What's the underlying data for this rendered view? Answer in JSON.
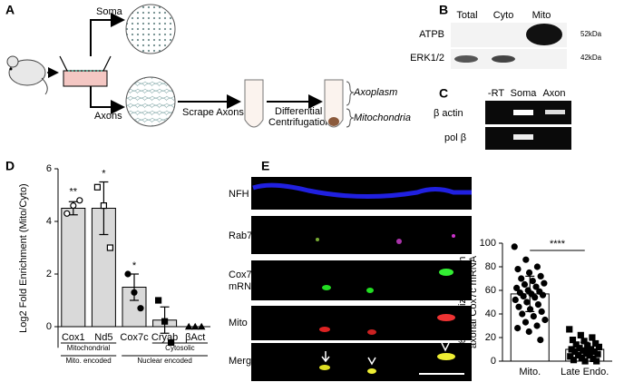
{
  "panels": {
    "A": {
      "label": "A",
      "soma": "Soma",
      "axons": "Axons",
      "scrape": "Scrape Axons",
      "centrifugation": [
        "Differential",
        "Centrifugation"
      ],
      "axoplasm": "Axoplasm",
      "mitochondria": "Mitochondria"
    },
    "B": {
      "label": "B",
      "columns": [
        "Total",
        "Cyto",
        "Mito"
      ],
      "rows": [
        "ATPB",
        "ERK1/2"
      ],
      "sizes": [
        "52kDa",
        "42kDa"
      ]
    },
    "C": {
      "label": "C",
      "columns": [
        "-RT",
        "Soma",
        "Axon"
      ],
      "rows": [
        "β actin",
        "pol β"
      ]
    },
    "D": {
      "label": "D"
    },
    "E": {
      "label": "E",
      "rows": [
        [
          "NFH"
        ],
        [
          "Rab7"
        ],
        [
          "Cox7c",
          "mRNA"
        ],
        [
          "Mito"
        ],
        [
          "Merge"
        ]
      ]
    }
  },
  "chart_data": [
    {
      "type": "bar",
      "y_label": "Log2 Fold Enrichment (Mito/Cyto)",
      "categories": [
        "Cox1",
        "Nd5",
        "Cox7c",
        "Cryab",
        "βAct"
      ],
      "values": [
        4.5,
        4.5,
        1.5,
        0.25,
        0
      ],
      "errors": [
        0.25,
        1.0,
        0.5,
        0.5,
        0
      ],
      "points": [
        [
          4.3,
          4.6,
          4.8
        ],
        [
          5.3,
          4.6,
          3.0
        ],
        [
          2.0,
          1.3,
          0.7
        ],
        [
          1.0,
          0.2,
          -0.6
        ],
        [
          0,
          0,
          0
        ]
      ],
      "markers": [
        "circle-open",
        "square-open",
        "circle",
        "square",
        "triangle"
      ],
      "significance": [
        "**",
        "*",
        "*",
        null,
        null
      ],
      "groups": [
        {
          "label": "Mitochondrial",
          "categories": [
            "Cox1",
            "Nd5"
          ],
          "level": 1
        },
        {
          "label": "Cytosolic",
          "categories": [
            "Cryab",
            "βAct"
          ],
          "level": 1
        },
        {
          "label": "Mito. encoded",
          "categories": [
            "Cox1",
            "Nd5"
          ],
          "level": 2
        },
        {
          "label": "Nuclear encoded",
          "categories": [
            "Cox7c",
            "Cryab",
            "βAct"
          ],
          "level": 2
        }
      ],
      "color": "#d9d9d9",
      "edge_color": "#000000",
      "ylim": [
        -0.8,
        6
      ],
      "yticks": [
        0,
        2,
        4,
        6
      ]
    },
    {
      "type": "bar",
      "y_label": [
        "%Colocalization with",
        "axonal Cox7c mRNA"
      ],
      "categories": [
        "Mito.",
        "Late Endo."
      ],
      "values": [
        57,
        10
      ],
      "errors": [
        15,
        6
      ],
      "points": [
        [
          97,
          86,
          80,
          78,
          75,
          72,
          70,
          68,
          66,
          65,
          63,
          62,
          60,
          59,
          58,
          57,
          56,
          55,
          54,
          52,
          50,
          48,
          46,
          44,
          42,
          40,
          38,
          35,
          33,
          30,
          28,
          25,
          18
        ],
        [
          27,
          22,
          20,
          18,
          17,
          15,
          14,
          13,
          12,
          11,
          10,
          10,
          9,
          8,
          8,
          7,
          6,
          5,
          5,
          4,
          3,
          2,
          1,
          0,
          0
        ]
      ],
      "markers": [
        "circle",
        "square"
      ],
      "significance_bracket": "****",
      "color": "#ffffff",
      "edge_color": "#000000",
      "ylim": [
        0,
        100
      ],
      "yticks": [
        0,
        20,
        40,
        60,
        80,
        100
      ]
    }
  ]
}
